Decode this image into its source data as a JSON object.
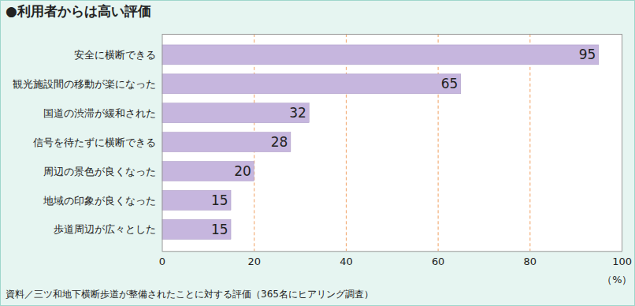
{
  "chart_data": {
    "type": "bar",
    "title": "●利用者からは高い評価",
    "caption": "資料／三ツ和地下横断歩道が整備されたことに対する評価（365名にヒアリング調査）",
    "orientation": "horizontal",
    "categories": [
      "安全に横断できる",
      "観光施設間の移動が楽になった",
      "国道の渋滞が緩和された",
      "信号を待たずに横断できる",
      "周辺の景色が良くなった",
      "地域の印象が良くなった",
      "歩道周辺が広々とした"
    ],
    "values": [
      95,
      65,
      32,
      28,
      20,
      15,
      15
    ],
    "color": "#c6b6de",
    "xlim": [
      0,
      100
    ],
    "xticks": [
      0,
      20,
      40,
      60,
      80,
      100
    ],
    "xlabel": "（%）",
    "grid": true,
    "data_labels": true
  }
}
